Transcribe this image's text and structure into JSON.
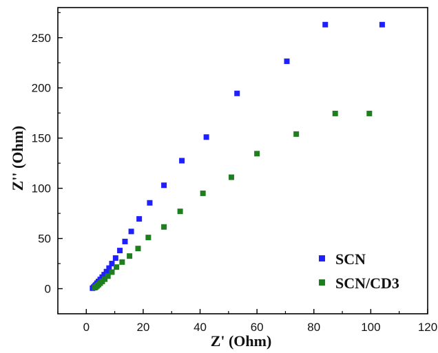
{
  "chart_data": {
    "type": "scatter",
    "xlabel": "Z' (Ohm)",
    "ylabel": "Z'' (Ohm)",
    "xlim": [
      -10,
      120
    ],
    "ylim": [
      -25,
      280
    ],
    "xticks": [
      0,
      20,
      40,
      60,
      80,
      100,
      120
    ],
    "yticks": [
      0,
      50,
      100,
      150,
      200,
      250
    ],
    "grid": false,
    "legend_position": "bottom-right",
    "series": [
      {
        "name": "SCN",
        "color": "#1f1fff",
        "marker": "square",
        "x": [
          2.2,
          2.6,
          3.0,
          3.4,
          3.8,
          4.3,
          4.9,
          5.6,
          6.3,
          7.1,
          8.0,
          9.0,
          10.3,
          11.8,
          13.6,
          15.8,
          18.6,
          22.3,
          27.3,
          33.6,
          42.2,
          53.0,
          70.5,
          84.0,
          104.0
        ],
        "y": [
          0.5,
          1.5,
          2.8,
          4.0,
          5.5,
          7.2,
          9.2,
          11.5,
          14.0,
          17.0,
          20.5,
          25.0,
          30.5,
          38.0,
          47.0,
          57.0,
          69.5,
          85.5,
          103.0,
          127.5,
          151.0,
          194.5,
          226.5,
          263.0,
          263.0
        ]
      },
      {
        "name": "SCN/CD3",
        "color": "#1f7f1f",
        "marker": "square",
        "x": [
          3.0,
          3.4,
          3.8,
          4.3,
          4.9,
          5.6,
          6.5,
          7.6,
          9.0,
          10.6,
          12.6,
          15.2,
          18.2,
          21.8,
          27.3,
          33.0,
          41.0,
          51.0,
          60.0,
          73.8,
          87.5,
          99.5
        ],
        "y": [
          1.0,
          1.8,
          2.8,
          4.0,
          5.5,
          7.2,
          9.5,
          12.5,
          16.5,
          21.5,
          26.5,
          32.5,
          40.0,
          51.0,
          61.5,
          77.0,
          95.0,
          111.0,
          134.5,
          154.0,
          174.5,
          174.5
        ]
      }
    ]
  }
}
